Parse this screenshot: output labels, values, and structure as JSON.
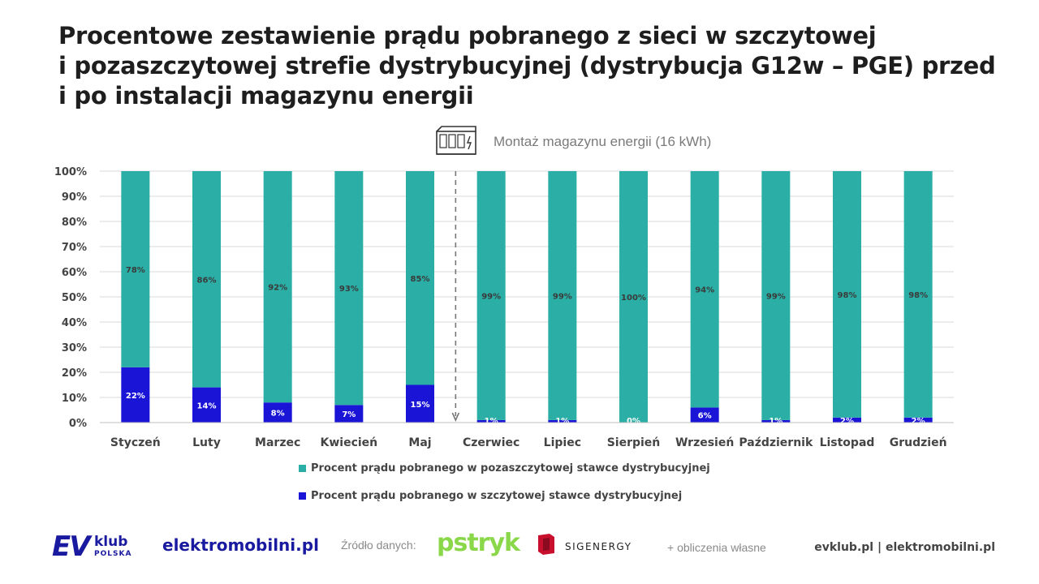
{
  "title_lines": [
    "Procentowe zestawienie prądu pobranego z sieci w szczytowej",
    "i pozaszczytowej strefie dystrybucyjnej (dystrybucja G12w – PGE) przed",
    "i po instalacji magazynu energii"
  ],
  "annotation": "Montaż magazynu energii (16 kWh)",
  "legend": [
    {
      "label": "Procent prądu pobranego w pozaszczytowej stawce dystrybucyjnej",
      "color": "#2aaea5"
    },
    {
      "label": "Procent prądu pobranego w szczytowej stawce dystrybucyjnej",
      "color": "#1a14d6"
    }
  ],
  "footer": {
    "ev_logo": "EV",
    "ev_klub": "klub",
    "ev_polska": "POLSKA",
    "em_logo": "elektromobilni.pl",
    "source_label": "Źródło danych:",
    "pstryk_logo": "pstryk",
    "sig_logo": "SIGENERGY",
    "own_calc": "+ obliczenia własne",
    "site": "evklub.pl | elektromobilni.pl"
  },
  "chart_data": {
    "type": "bar",
    "stacked": true,
    "categories": [
      "Styczeń",
      "Luty",
      "Marzec",
      "Kwiecień",
      "Maj",
      "Czerwiec",
      "Lipiec",
      "Sierpień",
      "Wrzesień",
      "Październik",
      "Listopad",
      "Grudzień"
    ],
    "series": [
      {
        "name": "Procent prądu pobranego w szczytowej stawce dystrybucyjnej",
        "color": "#1a14d6",
        "values": [
          22,
          14,
          8,
          7,
          15,
          1,
          1,
          0,
          6,
          1,
          2,
          2
        ]
      },
      {
        "name": "Procent prądu pobranego w pozaszczytowej stawce dystrybucyjnej",
        "color": "#2aaea5",
        "values": [
          78,
          86,
          92,
          93,
          85,
          99,
          99,
          100,
          94,
          99,
          98,
          98
        ]
      }
    ],
    "ylim": [
      0,
      100
    ],
    "yticks": [
      "0%",
      "10%",
      "20%",
      "30%",
      "40%",
      "50%",
      "60%",
      "70%",
      "80%",
      "90%",
      "100%"
    ],
    "grid": true,
    "legend_position": "bottom",
    "divider_after_category": "Maj"
  }
}
